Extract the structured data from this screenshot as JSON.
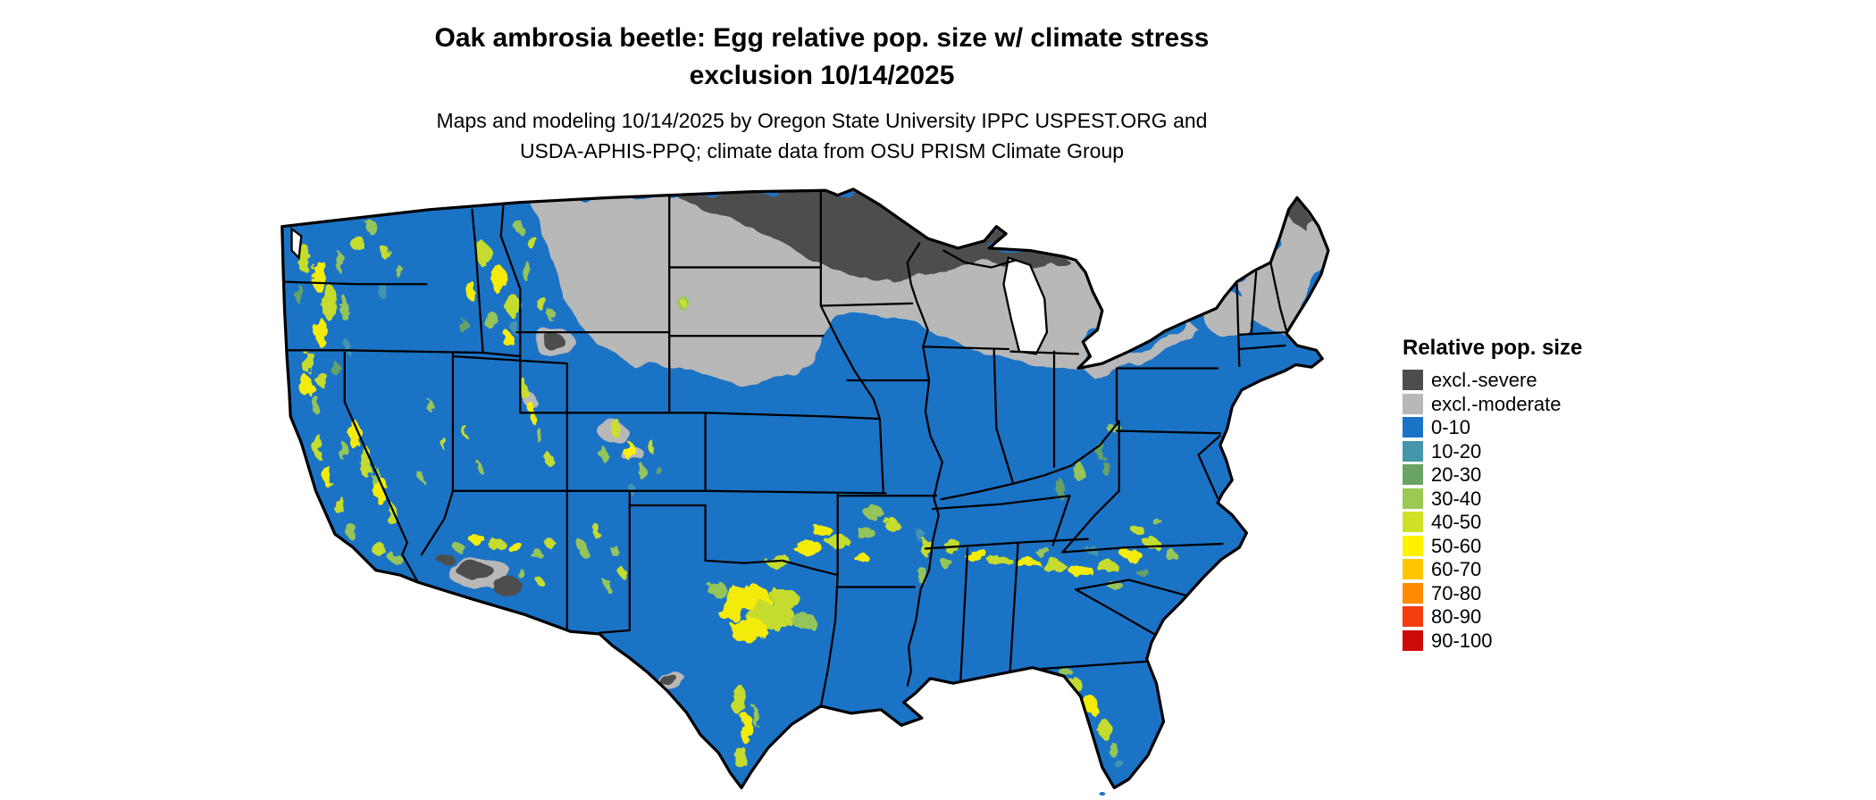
{
  "header": {
    "title_line1": "Oak ambrosia beetle: Egg relative pop. size w/ climate stress",
    "title_line2": "exclusion 10/14/2025",
    "subtitle_line1": "Maps and modeling 10/14/2025 by Oregon State University IPPC USPEST.ORG and",
    "subtitle_line2": "USDA-APHIS-PPQ; climate data from OSU PRISM Climate Group"
  },
  "legend": {
    "title": "Relative pop. size",
    "items": [
      {
        "label": "excl.-severe",
        "color": "#4d4d4d"
      },
      {
        "label": "excl.-moderate",
        "color": "#b8b8b8"
      },
      {
        "label": "0-10",
        "color": "#1b73c6"
      },
      {
        "label": "10-20",
        "color": "#4696ab"
      },
      {
        "label": "20-30",
        "color": "#69a464"
      },
      {
        "label": "30-40",
        "color": "#9cc954"
      },
      {
        "label": "40-50",
        "color": "#cfe227"
      },
      {
        "label": "50-60",
        "color": "#fff200"
      },
      {
        "label": "60-70",
        "color": "#ffc400"
      },
      {
        "label": "70-80",
        "color": "#ff8c00"
      },
      {
        "label": "80-90",
        "color": "#f23d0f"
      },
      {
        "label": "90-100",
        "color": "#cc0a0a"
      }
    ]
  },
  "map": {
    "region": "Continental United States",
    "background": "#ffffff",
    "border_color": "#000000"
  }
}
